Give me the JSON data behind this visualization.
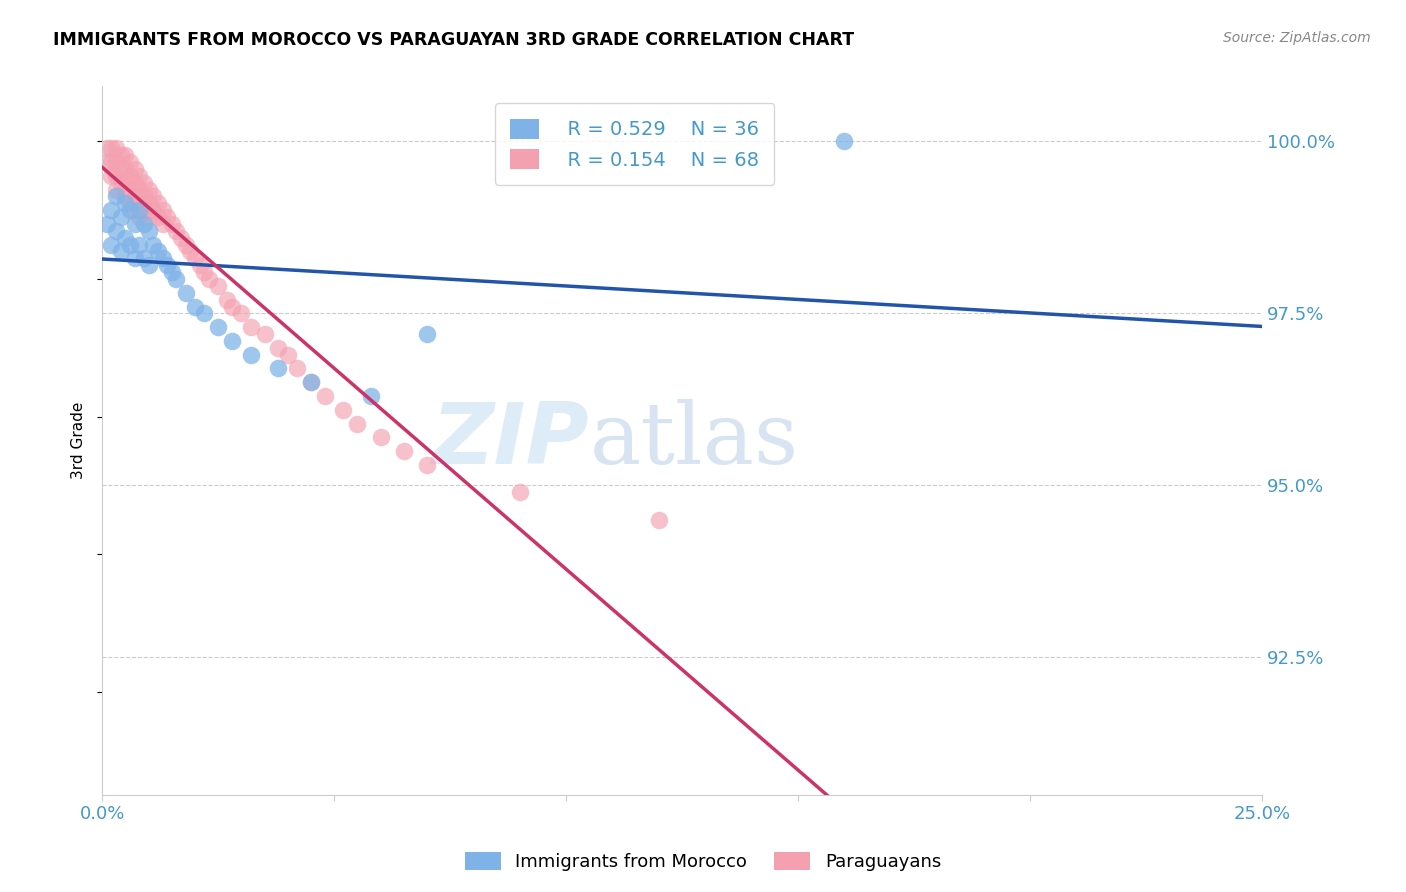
{
  "title": "IMMIGRANTS FROM MOROCCO VS PARAGUAYAN 3RD GRADE CORRELATION CHART",
  "source": "Source: ZipAtlas.com",
  "ylabel": "3rd Grade",
  "ylabel_right_ticks": [
    "100.0%",
    "97.5%",
    "95.0%",
    "92.5%"
  ],
  "ylabel_right_vals": [
    1.0,
    0.975,
    0.95,
    0.925
  ],
  "xlim": [
    0.0,
    0.25
  ],
  "ylim": [
    0.905,
    1.008
  ],
  "legend_blue_r": "0.529",
  "legend_blue_n": "36",
  "legend_pink_r": "0.154",
  "legend_pink_n": "68",
  "blue_color": "#7fb3e8",
  "pink_color": "#f4a0b0",
  "blue_line_color": "#2255aa",
  "pink_line_color": "#cc3366",
  "watermark_zip": "ZIP",
  "watermark_atlas": "atlas",
  "blue_x": [
    0.001,
    0.002,
    0.002,
    0.003,
    0.003,
    0.004,
    0.004,
    0.005,
    0.005,
    0.006,
    0.006,
    0.007,
    0.007,
    0.008,
    0.008,
    0.009,
    0.009,
    0.01,
    0.01,
    0.011,
    0.012,
    0.013,
    0.014,
    0.015,
    0.016,
    0.018,
    0.02,
    0.022,
    0.025,
    0.028,
    0.032,
    0.038,
    0.045,
    0.058,
    0.07,
    0.16
  ],
  "blue_y": [
    0.988,
    0.99,
    0.985,
    0.992,
    0.987,
    0.989,
    0.984,
    0.991,
    0.986,
    0.99,
    0.985,
    0.988,
    0.983,
    0.99,
    0.985,
    0.988,
    0.983,
    0.987,
    0.982,
    0.985,
    0.984,
    0.983,
    0.982,
    0.981,
    0.98,
    0.978,
    0.976,
    0.975,
    0.973,
    0.971,
    0.969,
    0.967,
    0.965,
    0.963,
    0.972,
    1.0
  ],
  "pink_x": [
    0.001,
    0.001,
    0.002,
    0.002,
    0.002,
    0.003,
    0.003,
    0.003,
    0.003,
    0.004,
    0.004,
    0.004,
    0.005,
    0.005,
    0.005,
    0.005,
    0.006,
    0.006,
    0.006,
    0.006,
    0.007,
    0.007,
    0.007,
    0.007,
    0.008,
    0.008,
    0.008,
    0.008,
    0.009,
    0.009,
    0.009,
    0.01,
    0.01,
    0.01,
    0.011,
    0.011,
    0.012,
    0.012,
    0.013,
    0.013,
    0.014,
    0.015,
    0.016,
    0.017,
    0.018,
    0.019,
    0.02,
    0.021,
    0.022,
    0.023,
    0.025,
    0.027,
    0.028,
    0.03,
    0.032,
    0.035,
    0.038,
    0.04,
    0.042,
    0.045,
    0.048,
    0.052,
    0.055,
    0.06,
    0.065,
    0.07,
    0.09,
    0.12
  ],
  "pink_y": [
    0.999,
    0.997,
    0.999,
    0.997,
    0.995,
    0.999,
    0.997,
    0.995,
    0.993,
    0.998,
    0.996,
    0.994,
    0.998,
    0.996,
    0.994,
    0.992,
    0.997,
    0.995,
    0.993,
    0.991,
    0.996,
    0.994,
    0.992,
    0.99,
    0.995,
    0.993,
    0.991,
    0.989,
    0.994,
    0.992,
    0.99,
    0.993,
    0.991,
    0.989,
    0.992,
    0.99,
    0.991,
    0.989,
    0.99,
    0.988,
    0.989,
    0.988,
    0.987,
    0.986,
    0.985,
    0.984,
    0.983,
    0.982,
    0.981,
    0.98,
    0.979,
    0.977,
    0.976,
    0.975,
    0.973,
    0.972,
    0.97,
    0.969,
    0.967,
    0.965,
    0.963,
    0.961,
    0.959,
    0.957,
    0.955,
    0.953,
    0.949,
    0.945
  ]
}
